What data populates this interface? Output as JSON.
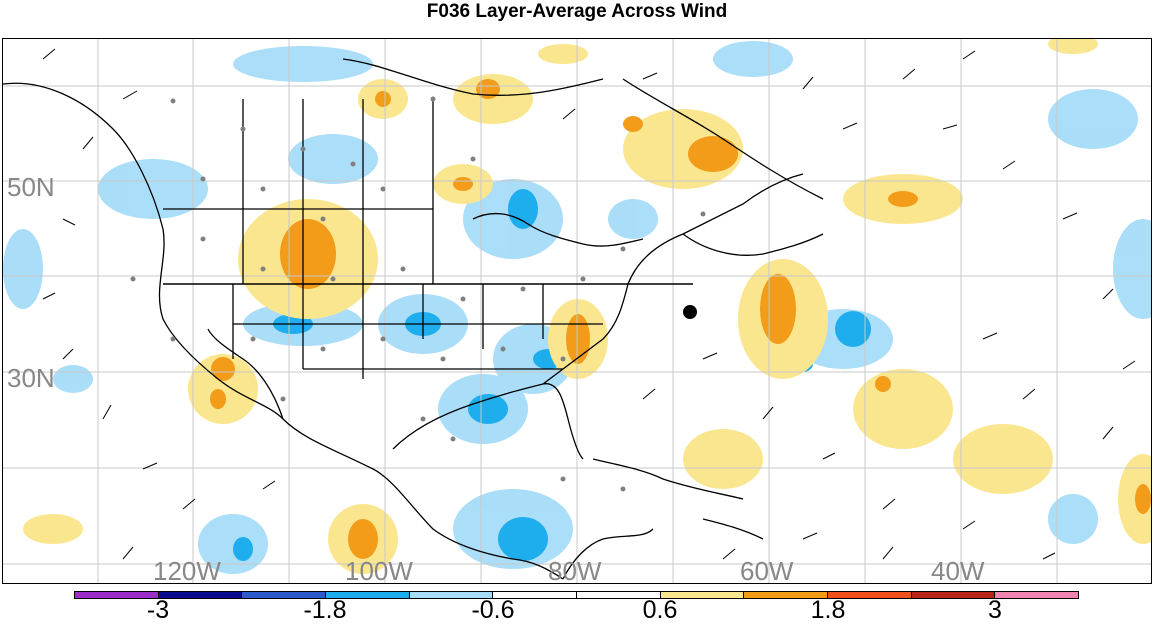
{
  "title": "F036 Layer-Average Across Wind",
  "map": {
    "lat_labels": [
      "50N",
      "30N"
    ],
    "lon_labels": [
      "120W",
      "100W",
      "80W",
      "60W",
      "40W"
    ]
  },
  "colorbar": {
    "tick_labels": [
      "-3",
      "-1.8",
      "-0.6",
      "0.6",
      "1.8",
      "3"
    ],
    "colors": [
      "#9b30c8",
      "#0a0a8c",
      "#2a5ccc",
      "#1eaeee",
      "#a6dcf8",
      "#ffffff",
      "#fbe690",
      "#f29c1a",
      "#f0501c",
      "#b82418",
      "#f086b0"
    ]
  }
}
